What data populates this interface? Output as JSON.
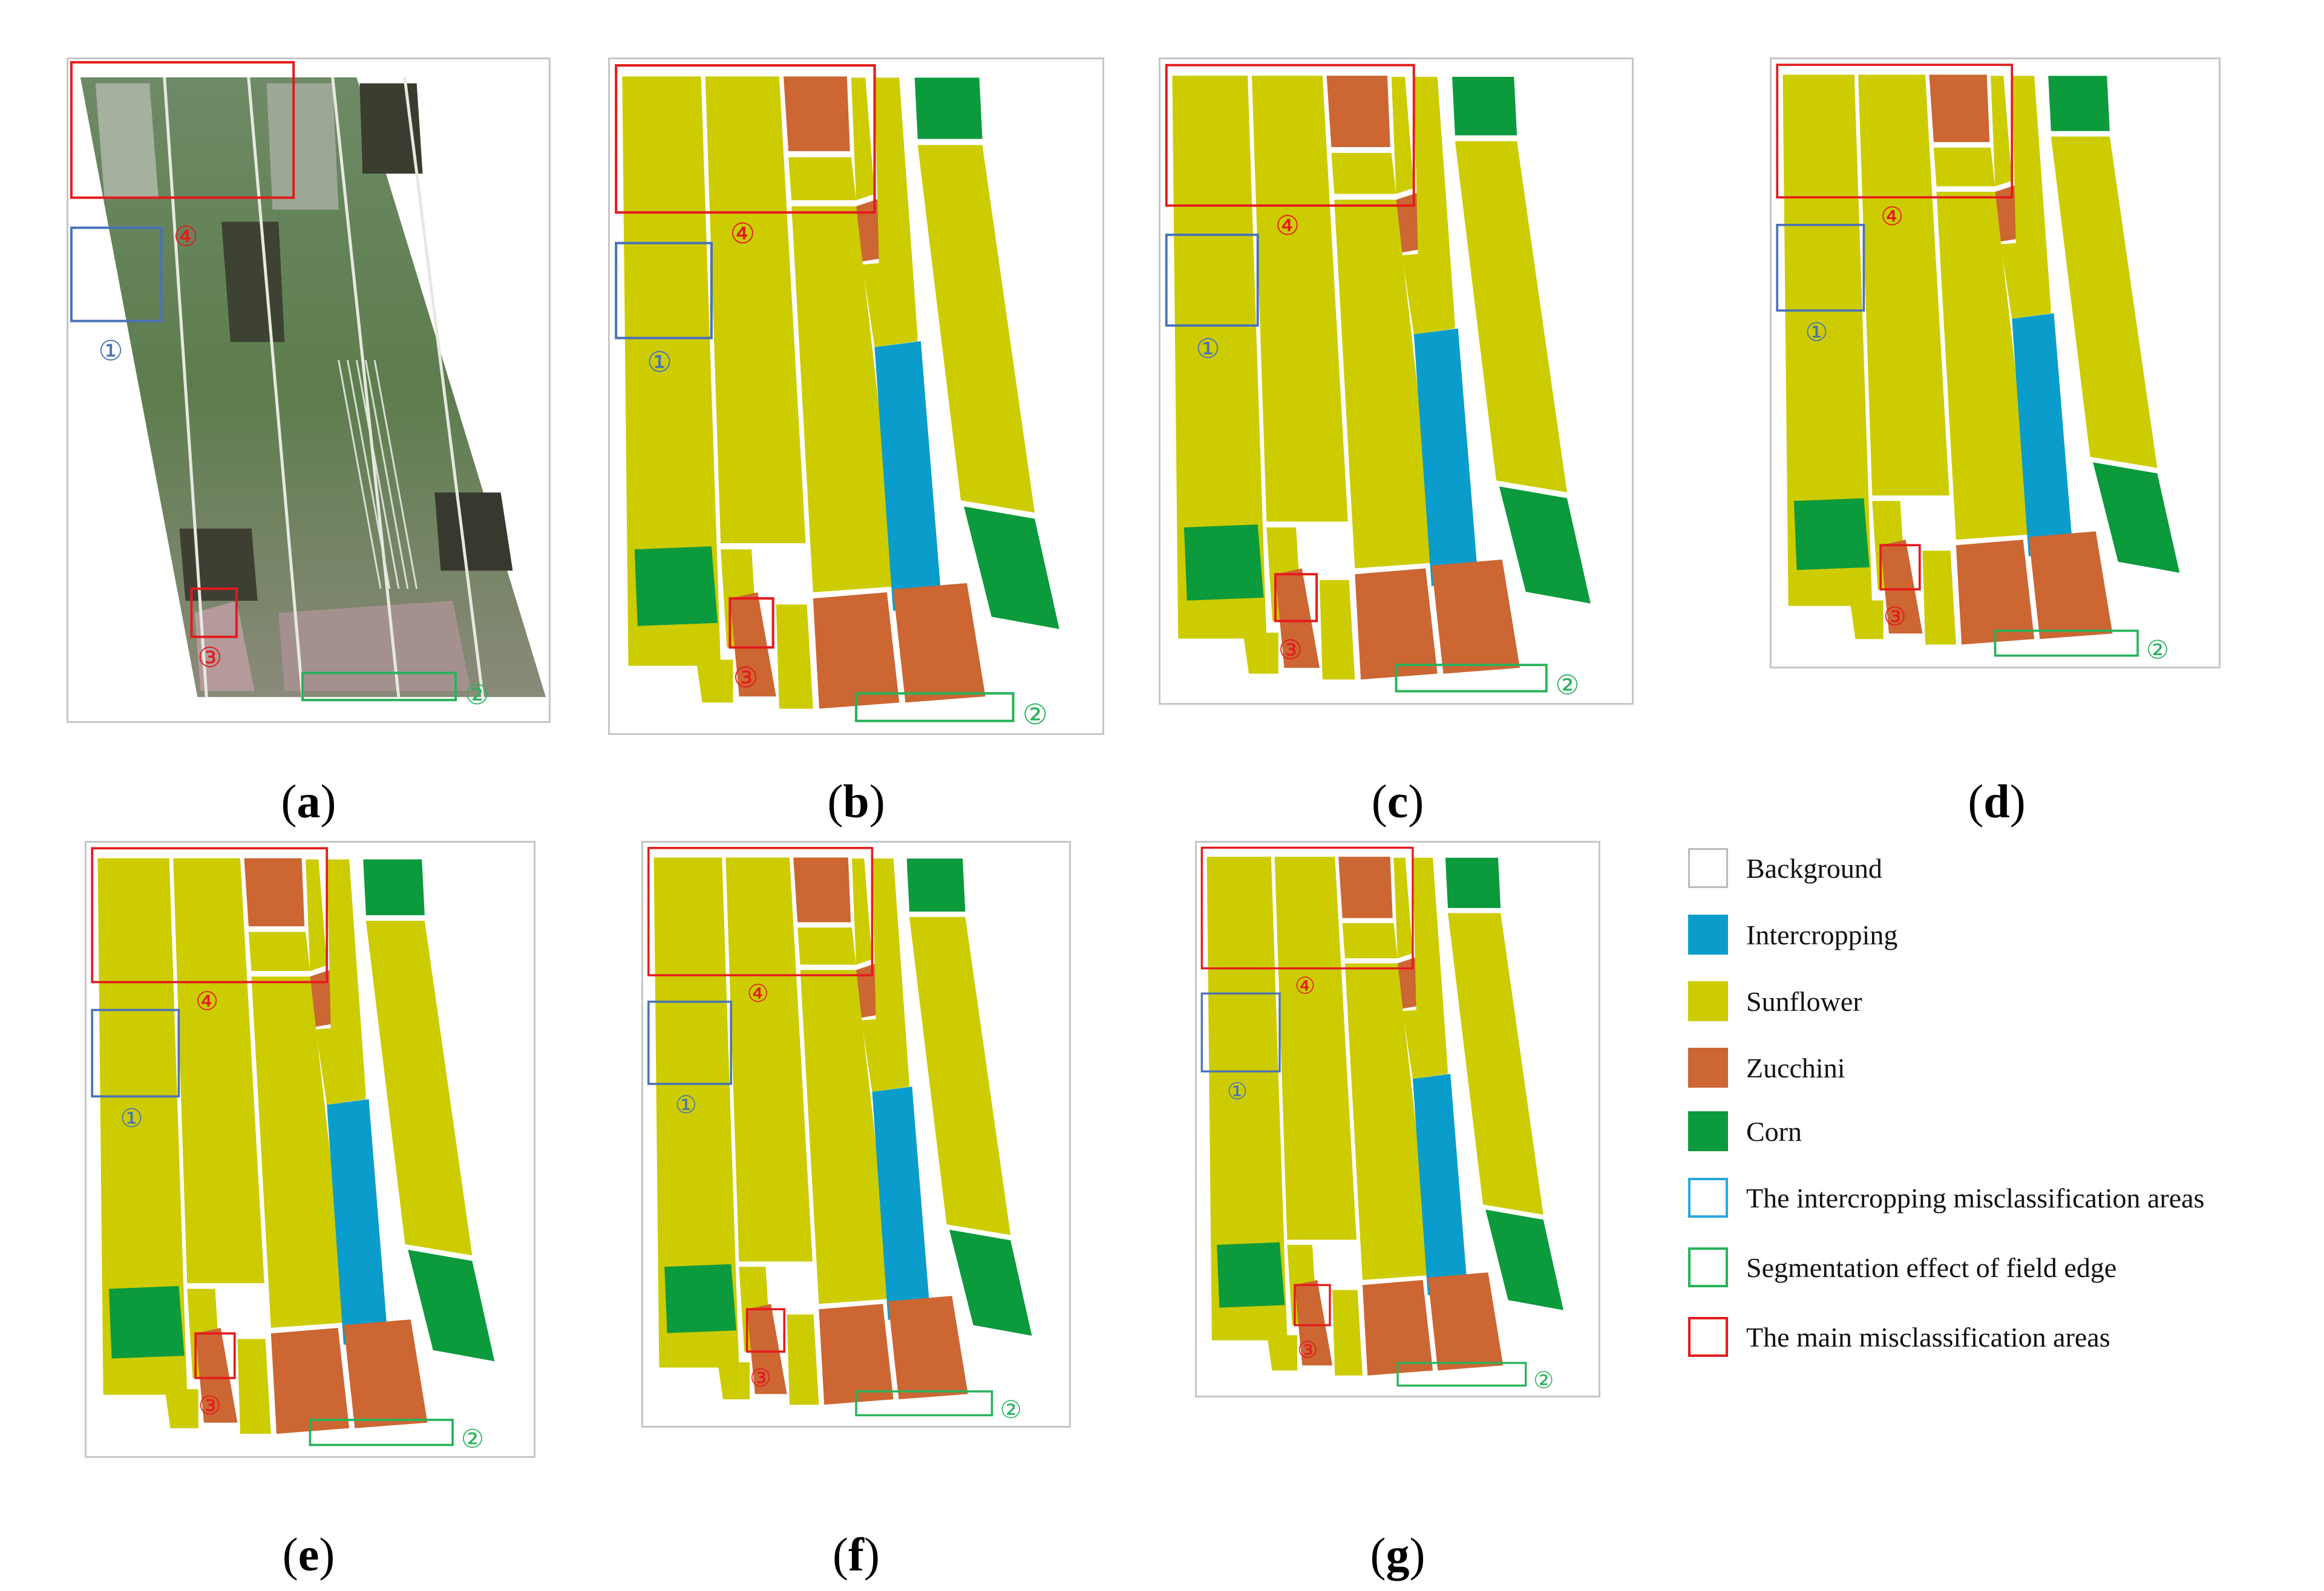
{
  "colors": {
    "background": "#ffffff",
    "intercropping": "#0a9dcc",
    "sunflower": "#cccc00",
    "zucchini": "#cc6633",
    "corn": "#0b9a3c",
    "intercropping_box": "#4a72b8",
    "field_edge_box": "#27b35a",
    "main_misclass_box": "#e41a1c"
  },
  "markers": {
    "intercropping_area": "①",
    "field_edge": "②",
    "area_3": "③",
    "area_4": "④"
  },
  "captions": {
    "a": "a",
    "b": "b",
    "c": "c",
    "d": "d",
    "e": "e",
    "f": "f",
    "g": "g"
  },
  "legend": [
    {
      "label": "Background",
      "kind": "fill",
      "color": "#ffffff"
    },
    {
      "label": "Intercropping",
      "kind": "fill",
      "color": "#0a9dcc"
    },
    {
      "label": "Sunflower",
      "kind": "fill",
      "color": "#cccc00"
    },
    {
      "label": "Zucchini",
      "kind": "fill",
      "color": "#cc6633"
    },
    {
      "label": "Corn",
      "kind": "fill",
      "color": "#0b9a3c"
    },
    {
      "label": "The intercropping misclassification areas",
      "kind": "outline",
      "color": "#29a8e0"
    },
    {
      "label": "Segmentation effect of field edge",
      "kind": "outline",
      "color": "#27b35a"
    },
    {
      "label": "The main misclassification areas",
      "kind": "outline",
      "color": "#e41a1c"
    }
  ]
}
